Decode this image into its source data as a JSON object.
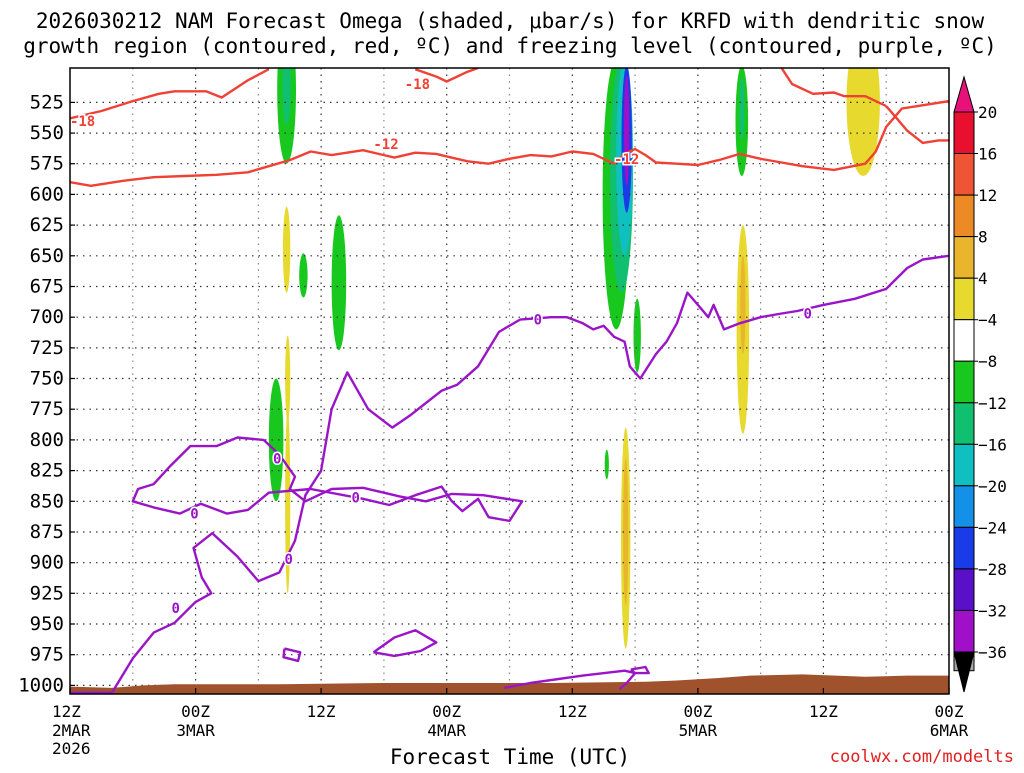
{
  "chart_data": {
    "type": "heatmap",
    "title_line1": "2026030212 NAM Forecast Omega (shaded, μbar/s) for KRFD with dendritic snow",
    "title_line2": "growth region (contoured, red, ºC) and freezing level (contoured, purple, ºC)",
    "xlabel": "Forecast Time (UTC)",
    "credit": "coolwx.com/modelts",
    "xlim_hours": [
      0,
      84
    ],
    "ylim_mb": [
      1007,
      497
    ],
    "y_ticks": [
      525,
      550,
      575,
      600,
      625,
      650,
      675,
      700,
      725,
      750,
      775,
      800,
      825,
      850,
      875,
      900,
      925,
      950,
      975,
      1000
    ],
    "x_ticks": [
      {
        "hour": 0,
        "time": "12Z",
        "date": "2MAR",
        "year": "2026"
      },
      {
        "hour": 12,
        "time": "00Z",
        "date": "3MAR",
        "year": ""
      },
      {
        "hour": 24,
        "time": "12Z",
        "date": "",
        "year": ""
      },
      {
        "hour": 36,
        "time": "00Z",
        "date": "4MAR",
        "year": ""
      },
      {
        "hour": 48,
        "time": "12Z",
        "date": "",
        "year": ""
      },
      {
        "hour": 60,
        "time": "00Z",
        "date": "5MAR",
        "year": ""
      },
      {
        "hour": 72,
        "time": "12Z",
        "date": "",
        "year": ""
      },
      {
        "hour": 84,
        "time": "00Z",
        "date": "6MAR",
        "year": ""
      }
    ],
    "colorbar": {
      "labels": [
        "20",
        "16",
        "12",
        "8",
        "4",
        "−4",
        "−8",
        "−12",
        "−16",
        "−20",
        "−24",
        "−28",
        "−32",
        "−36"
      ],
      "segments": [
        "#e8102e",
        "#ef5535",
        "#ec8a26",
        "#e8b52c",
        "#e8d92f",
        "#ffffff",
        "#19c81e",
        "#10c070",
        "#10c0c0",
        "#1390e8",
        "#1a3ce8",
        "#5a10c8",
        "#a010c8",
        "#a8a8a8"
      ],
      "top_color": "#e8117a",
      "bottom_color": "#000000"
    },
    "contour_labels": [
      {
        "text": "-18",
        "series": "dgz",
        "hour": 1.2,
        "mb": 540
      },
      {
        "text": "-18",
        "series": "dgz",
        "hour": 33.2,
        "mb": 510
      },
      {
        "text": "-12",
        "series": "dgz",
        "hour": 30.2,
        "mb": 559
      },
      {
        "text": "-12",
        "series": "dgz",
        "hour": 53.2,
        "mb": 571
      },
      {
        "text": "0",
        "series": "freezing",
        "hour": 44.7,
        "mb": 702
      },
      {
        "text": "0",
        "series": "freezing",
        "hour": 70.5,
        "mb": 697
      },
      {
        "text": "0",
        "series": "freezing",
        "hour": 19.8,
        "mb": 815
      },
      {
        "text": "0",
        "series": "freezing",
        "hour": 11.9,
        "mb": 860
      },
      {
        "text": "0",
        "series": "freezing",
        "hour": 27.3,
        "mb": 847
      },
      {
        "text": "0",
        "series": "freezing",
        "hour": 20.9,
        "mb": 897
      },
      {
        "text": "0",
        "series": "freezing",
        "hour": 10.1,
        "mb": 937
      }
    ],
    "dgz_contours": [
      {
        "level": -18,
        "points": [
          [
            0,
            538
          ],
          [
            3,
            532
          ],
          [
            6,
            524
          ],
          [
            8.5,
            518
          ],
          [
            10,
            516
          ],
          [
            13,
            516
          ],
          [
            14.5,
            521
          ],
          [
            17,
            507
          ],
          [
            19,
            498
          ]
        ]
      },
      {
        "level": -18,
        "points": [
          [
            33,
            498
          ],
          [
            35,
            504
          ],
          [
            36,
            508
          ],
          [
            38,
            500
          ],
          [
            39,
            497
          ]
        ]
      },
      {
        "level": -18,
        "points": [
          [
            68,
            497
          ],
          [
            69,
            510
          ],
          [
            71,
            518
          ],
          [
            73,
            517
          ],
          [
            74,
            520
          ],
          [
            76,
            520
          ],
          [
            78,
            528
          ]
        ]
      },
      {
        "level": -18,
        "points": [
          [
            78,
            528
          ],
          [
            79,
            538
          ],
          [
            80,
            548
          ],
          [
            81.5,
            558
          ],
          [
            83,
            556
          ],
          [
            84,
            556
          ]
        ]
      },
      {
        "level": -12,
        "points": [
          [
            0,
            590
          ],
          [
            2,
            593
          ],
          [
            5,
            589
          ],
          [
            8,
            586
          ],
          [
            11,
            585
          ],
          [
            14,
            584
          ],
          [
            17,
            582
          ],
          [
            19,
            577
          ],
          [
            21,
            572
          ],
          [
            23,
            565
          ],
          [
            25,
            568
          ],
          [
            28,
            564
          ],
          [
            31,
            570
          ],
          [
            33,
            566
          ],
          [
            35,
            567
          ],
          [
            36,
            569
          ],
          [
            38,
            573
          ],
          [
            40,
            575
          ],
          [
            42,
            571
          ],
          [
            44,
            568
          ],
          [
            46,
            569
          ],
          [
            48,
            565
          ],
          [
            50,
            567
          ],
          [
            52,
            575
          ],
          [
            53,
            567
          ],
          [
            54,
            563
          ],
          [
            55,
            568
          ],
          [
            56,
            574
          ],
          [
            58,
            575
          ],
          [
            60,
            576
          ],
          [
            62,
            572
          ],
          [
            64,
            567
          ],
          [
            66,
            571
          ],
          [
            68,
            574
          ],
          [
            70,
            577
          ],
          [
            73,
            580
          ],
          [
            76,
            575
          ],
          [
            77,
            565
          ],
          [
            78,
            545
          ],
          [
            79.5,
            530
          ],
          [
            81,
            528
          ],
          [
            84,
            524
          ]
        ]
      }
    ],
    "freezing_contours": [
      {
        "level": 0,
        "points": [
          [
            0,
            1006
          ],
          [
            4,
            1006
          ],
          [
            6,
            978
          ],
          [
            8,
            957
          ],
          [
            10,
            949
          ],
          [
            12,
            932
          ],
          [
            13.5,
            925
          ],
          [
            12.6,
            912
          ],
          [
            11.8,
            888
          ],
          [
            13.6,
            876
          ],
          [
            16,
            895
          ],
          [
            18,
            915
          ],
          [
            20,
            908
          ],
          [
            21.5,
            882
          ],
          [
            22.5,
            845
          ],
          [
            24,
            825
          ],
          [
            25,
            775
          ],
          [
            26.5,
            745
          ],
          [
            27.5,
            760
          ],
          [
            28.5,
            775
          ],
          [
            30.8,
            790
          ],
          [
            32.5,
            780
          ],
          [
            34,
            770
          ],
          [
            35.5,
            760
          ],
          [
            37,
            755
          ],
          [
            39,
            740
          ],
          [
            41,
            712
          ],
          [
            43,
            702
          ],
          [
            46,
            700
          ],
          [
            47.5,
            700
          ],
          [
            49,
            705
          ],
          [
            50,
            710
          ],
          [
            51,
            707
          ],
          [
            52,
            716
          ],
          [
            53,
            720
          ],
          [
            53.5,
            740
          ],
          [
            54.5,
            750
          ],
          [
            56,
            730
          ],
          [
            57,
            720
          ],
          [
            58,
            705
          ],
          [
            59,
            680
          ],
          [
            60,
            690
          ],
          [
            61,
            700
          ],
          [
            61.5,
            690
          ],
          [
            62.5,
            710
          ],
          [
            64,
            705
          ],
          [
            66,
            700
          ],
          [
            68,
            697
          ],
          [
            69.5,
            695
          ],
          [
            72,
            690
          ],
          [
            75,
            685
          ],
          [
            78,
            677
          ],
          [
            80,
            660
          ],
          [
            81.5,
            653
          ],
          [
            84,
            650
          ]
        ]
      },
      {
        "level": 0,
        "points": [
          [
            20,
            812
          ],
          [
            18.5,
            800
          ],
          [
            16,
            798
          ],
          [
            14,
            805
          ],
          [
            11.5,
            805
          ],
          [
            9.5,
            822
          ],
          [
            8,
            836
          ],
          [
            6.5,
            840
          ],
          [
            6,
            850
          ],
          [
            8,
            855
          ],
          [
            10.5,
            860
          ],
          [
            12.5,
            852
          ],
          [
            15,
            860
          ],
          [
            17,
            857
          ],
          [
            19,
            843
          ],
          [
            23,
            840
          ],
          [
            28,
            848
          ],
          [
            30.5,
            853
          ],
          [
            33,
            845
          ],
          [
            35.5,
            838
          ],
          [
            36.5,
            850
          ],
          [
            37.5,
            858
          ],
          [
            39,
            848
          ],
          [
            40,
            863
          ],
          [
            42,
            866
          ],
          [
            43.2,
            850
          ],
          [
            39.5,
            845
          ],
          [
            36.5,
            844
          ],
          [
            34,
            850
          ],
          [
            31.5,
            846
          ],
          [
            28,
            839
          ],
          [
            25,
            840
          ],
          [
            22.5,
            850
          ],
          [
            21,
            840
          ],
          [
            21.5,
            830
          ],
          [
            20,
            812
          ]
        ]
      },
      {
        "level": 0,
        "points": [
          [
            29,
            973
          ],
          [
            31,
            961
          ],
          [
            33,
            955
          ],
          [
            35,
            965
          ],
          [
            33.5,
            972
          ],
          [
            31,
            976
          ],
          [
            29,
            973
          ]
        ]
      },
      {
        "level": 0,
        "points": [
          [
            20.5,
            970
          ],
          [
            22,
            973
          ],
          [
            21.8,
            980
          ],
          [
            20.4,
            977
          ],
          [
            20.5,
            970
          ]
        ]
      },
      {
        "level": 0,
        "points": [
          [
            41.5,
            1002
          ],
          [
            44,
            998
          ],
          [
            49,
            992
          ],
          [
            53,
            988
          ],
          [
            54,
            990
          ],
          [
            53.2,
            998
          ],
          [
            52.5,
            1003
          ]
        ]
      },
      {
        "level": 0,
        "points": [
          [
            53.6,
            987
          ],
          [
            55,
            985
          ],
          [
            55.3,
            990
          ],
          [
            54,
            990
          ],
          [
            53.6,
            987
          ]
        ]
      }
    ],
    "omega_blobs": [
      {
        "level": -8,
        "hour": 20.7,
        "mb": 515,
        "dh": 0.9,
        "dmb": 60
      },
      {
        "level": -12,
        "hour": 20.7,
        "mb": 508,
        "dh": 0.4,
        "dmb": 35
      },
      {
        "level": 4,
        "hour": 20.7,
        "mb": 645,
        "dh": 0.35,
        "dmb": 35
      },
      {
        "level": -8,
        "hour": 22.3,
        "mb": 666,
        "dh": 0.4,
        "dmb": 18
      },
      {
        "level": -8,
        "hour": 25.7,
        "mb": 672,
        "dh": 0.7,
        "dmb": 55
      },
      {
        "level": -8,
        "hour": 19.7,
        "mb": 800,
        "dh": 0.7,
        "dmb": 50
      },
      {
        "level": 4,
        "hour": 20.8,
        "mb": 750,
        "dh": 0.25,
        "dmb": 35
      },
      {
        "level": 4,
        "hour": 20.8,
        "mb": 850,
        "dh": 0.25,
        "dmb": 75
      },
      {
        "level": -8,
        "hour": 52.2,
        "mb": 600,
        "dh": 1.3,
        "dmb": 110
      },
      {
        "level": -12,
        "hour": 52.7,
        "mb": 585,
        "dh": 1.1,
        "dmb": 95
      },
      {
        "level": -16,
        "hour": 53.0,
        "mb": 570,
        "dh": 0.8,
        "dmb": 80
      },
      {
        "level": -24,
        "hour": 53.2,
        "mb": 555,
        "dh": 0.5,
        "dmb": 60
      },
      {
        "level": -32,
        "hour": 53.2,
        "mb": 548,
        "dh": 0.25,
        "dmb": 45
      },
      {
        "level": -8,
        "hour": 54.2,
        "mb": 715,
        "dh": 0.35,
        "dmb": 30
      },
      {
        "level": -8,
        "hour": 51.3,
        "mb": 820,
        "dh": 0.2,
        "dmb": 12
      },
      {
        "level": 4,
        "hour": 53.1,
        "mb": 880,
        "dh": 0.45,
        "dmb": 90
      },
      {
        "level": 8,
        "hour": 53.1,
        "mb": 875,
        "dh": 0.25,
        "dmb": 60
      },
      {
        "level": -8,
        "hour": 64.2,
        "mb": 540,
        "dh": 0.6,
        "dmb": 45
      },
      {
        "level": -12,
        "hour": 64.2,
        "mb": 530,
        "dh": 0.25,
        "dmb": 25
      },
      {
        "level": 4,
        "hour": 64.3,
        "mb": 710,
        "dh": 0.6,
        "dmb": 85
      },
      {
        "level": 8,
        "hour": 64.3,
        "mb": 690,
        "dh": 0.25,
        "dmb": 40
      },
      {
        "level": 4,
        "hour": 75.8,
        "mb": 525,
        "dh": 1.6,
        "dmb": 60
      }
    ],
    "terrain": {
      "color": "#a0522d",
      "points": [
        [
          0,
          1001
        ],
        [
          4,
          1002
        ],
        [
          7,
          1000
        ],
        [
          10,
          999
        ],
        [
          20,
          999
        ],
        [
          30,
          998
        ],
        [
          41,
          998
        ],
        [
          46,
          998
        ],
        [
          55,
          997
        ],
        [
          58,
          996
        ],
        [
          62,
          994
        ],
        [
          65,
          992
        ],
        [
          70,
          991
        ],
        [
          76,
          993
        ],
        [
          80,
          992
        ],
        [
          84,
          992
        ]
      ]
    }
  }
}
